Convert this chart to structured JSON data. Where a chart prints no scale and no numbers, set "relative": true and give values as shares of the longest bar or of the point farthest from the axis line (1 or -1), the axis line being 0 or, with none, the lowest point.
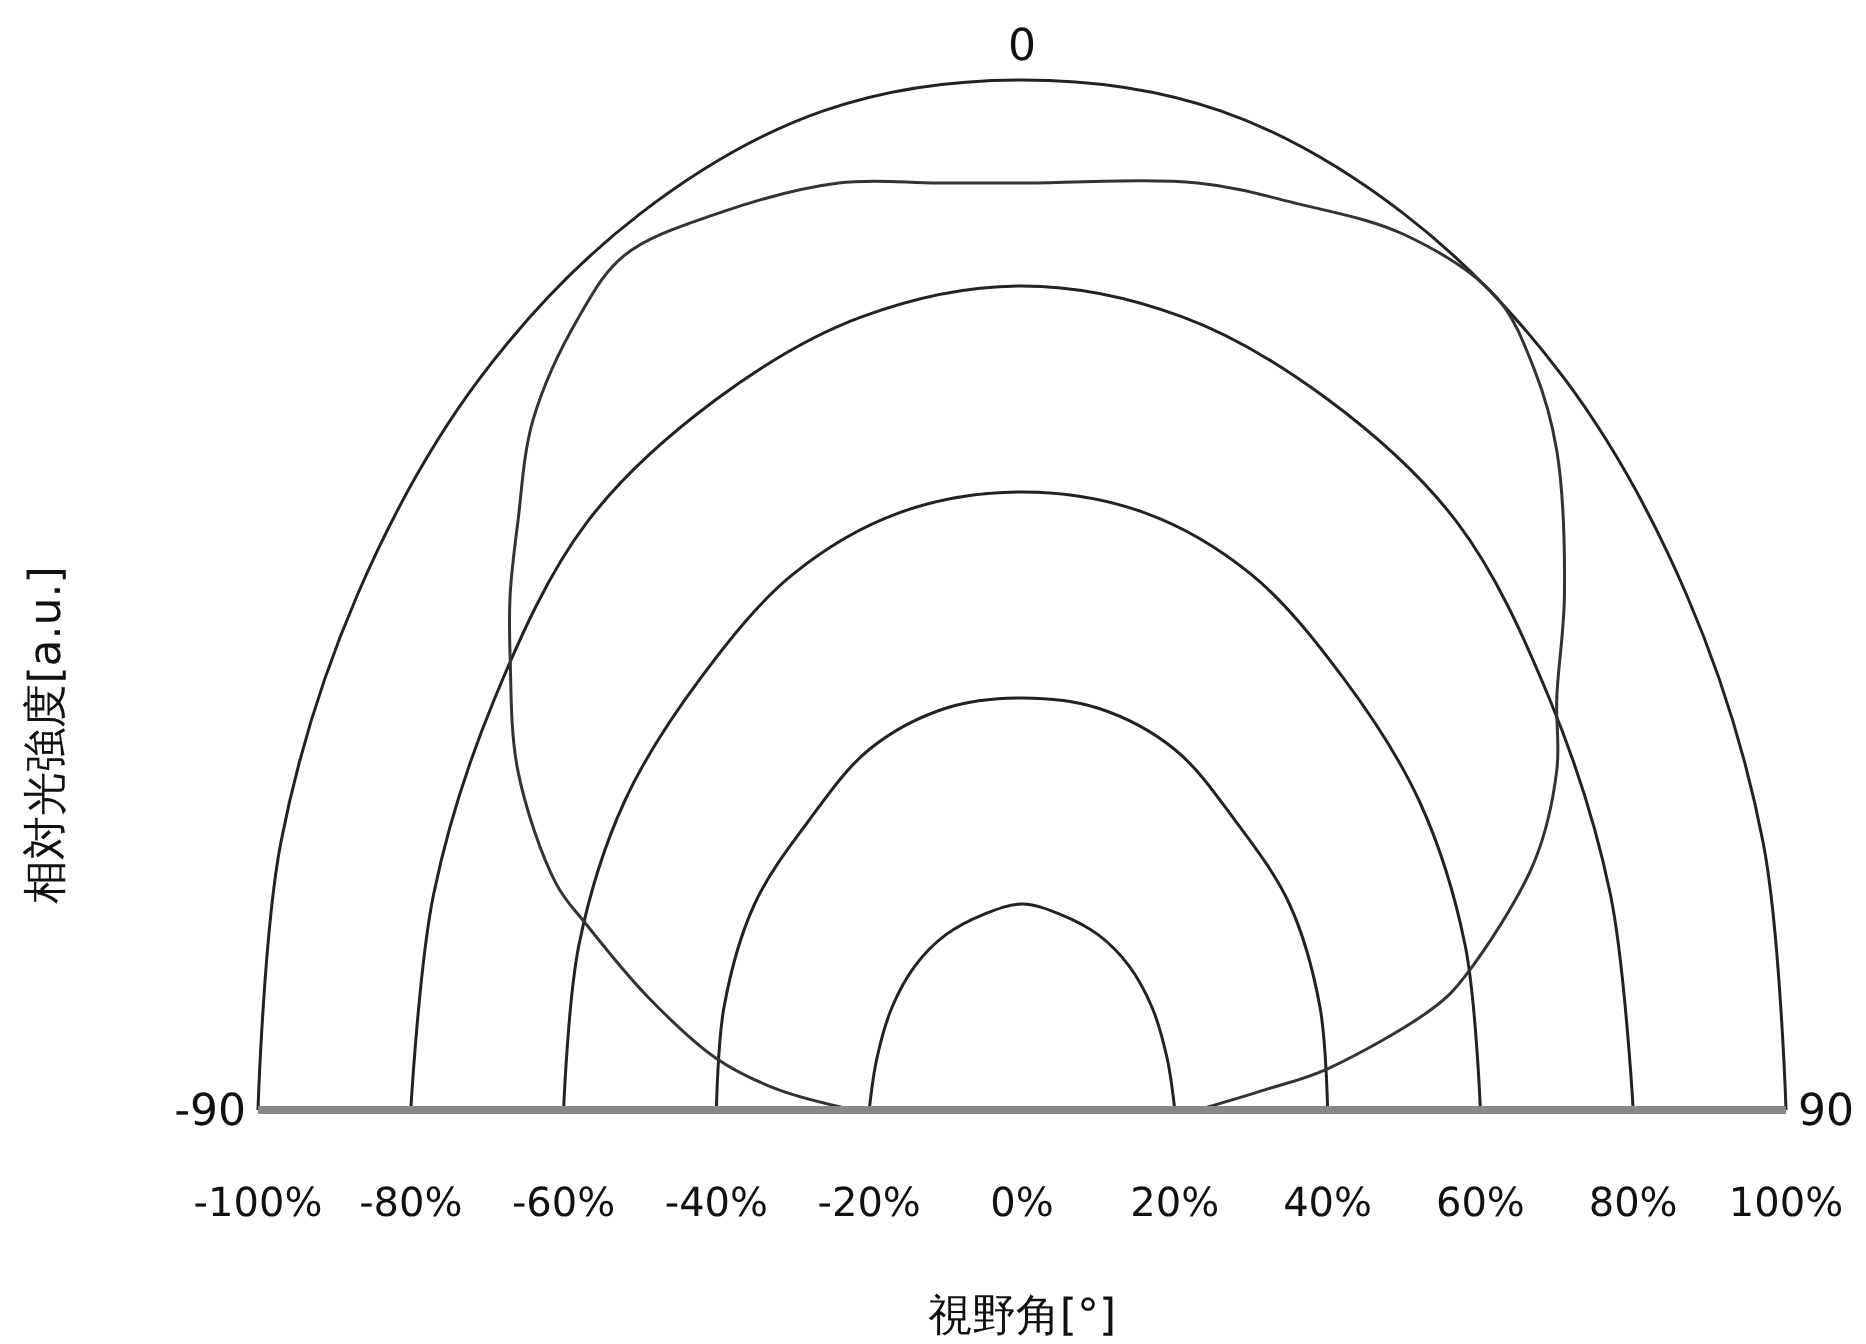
{
  "chart_data": {
    "type": "line",
    "xlabel": "視野角[°]",
    "ylabel": "相対光強度[a.u.]",
    "annotations": [
      "-90",
      "0",
      "90"
    ],
    "relative": true,
    "series": [
      {
        "color": "#222222",
        "x": [
          -100,
          -97,
          -87,
          -71,
          -50,
          -26,
          0,
          26,
          50,
          71,
          87,
          97,
          100
        ],
        "values": [
          0,
          0.26,
          0.5,
          0.71,
          0.87,
          0.97,
          1,
          0.97,
          0.87,
          0.71,
          0.5,
          0.26,
          0
        ]
      },
      {
        "color": "#222222",
        "x": [
          -80,
          -77,
          -69,
          -57,
          -40,
          -21,
          0,
          21,
          40,
          57,
          69,
          77,
          80
        ],
        "values": [
          0,
          0.21,
          0.4,
          0.57,
          0.69,
          0.77,
          0.8,
          0.77,
          0.69,
          0.57,
          0.4,
          0.21,
          0
        ]
      },
      {
        "color": "#222222",
        "x": [
          -60,
          -58,
          -52,
          -42,
          -30,
          -16,
          0,
          16,
          30,
          42,
          52,
          58,
          60
        ],
        "values": [
          0,
          0.16,
          0.3,
          0.42,
          0.52,
          0.58,
          0.6,
          0.58,
          0.52,
          0.42,
          0.3,
          0.16,
          0
        ]
      },
      {
        "color": "#222222",
        "x": [
          -40,
          -39,
          -35,
          -28,
          -20,
          -10,
          0,
          10,
          20,
          28,
          35,
          39,
          40
        ],
        "values": [
          0,
          0.1,
          0.2,
          0.28,
          0.35,
          0.39,
          0.4,
          0.39,
          0.35,
          0.28,
          0.2,
          0.1,
          0
        ]
      },
      {
        "color": "#222222",
        "x": [
          -20,
          -19,
          -17,
          -14,
          -10,
          -5,
          0,
          5,
          10,
          14,
          17,
          19,
          20
        ],
        "values": [
          0,
          0.05,
          0.1,
          0.14,
          0.17,
          0.19,
          0.2,
          0.19,
          0.17,
          0.14,
          0.1,
          0.05,
          0
        ]
      },
      {
        "color": "#333333",
        "x": [
          -22,
          -32,
          -40,
          -49,
          -57,
          -61,
          -66,
          -67,
          -67,
          -66,
          -64,
          -58,
          -52,
          -40,
          -24,
          -11,
          0,
          23,
          36,
          50,
          62,
          67,
          70,
          71,
          70,
          70,
          67,
          58,
          54,
          40,
          32,
          23
        ],
        "values": [
          0,
          0.02,
          0.05,
          0.11,
          0.18,
          0.22,
          0.33,
          0.44,
          0.5,
          0.57,
          0.67,
          0.77,
          0.83,
          0.87,
          0.9,
          0.9,
          0.9,
          0.9,
          0.88,
          0.85,
          0.79,
          0.72,
          0.64,
          0.5,
          0.4,
          0.33,
          0.24,
          0.13,
          0.1,
          0.04,
          0.02,
          0
        ]
      }
    ],
    "xlim": [
      -100,
      100
    ],
    "xticks": [
      {
        "value": -100,
        "label": "-100%"
      },
      {
        "value": -80,
        "label": "-80%"
      },
      {
        "value": -60,
        "label": "-60%"
      },
      {
        "value": -40,
        "label": "-40%"
      },
      {
        "value": -20,
        "label": "-20%"
      },
      {
        "value": 0,
        "label": "0%"
      },
      {
        "value": 20,
        "label": "20%"
      },
      {
        "value": 40,
        "label": "40%"
      },
      {
        "value": 60,
        "label": "60%"
      },
      {
        "value": 80,
        "label": "80%"
      },
      {
        "value": 100,
        "label": "100%"
      }
    ]
  }
}
